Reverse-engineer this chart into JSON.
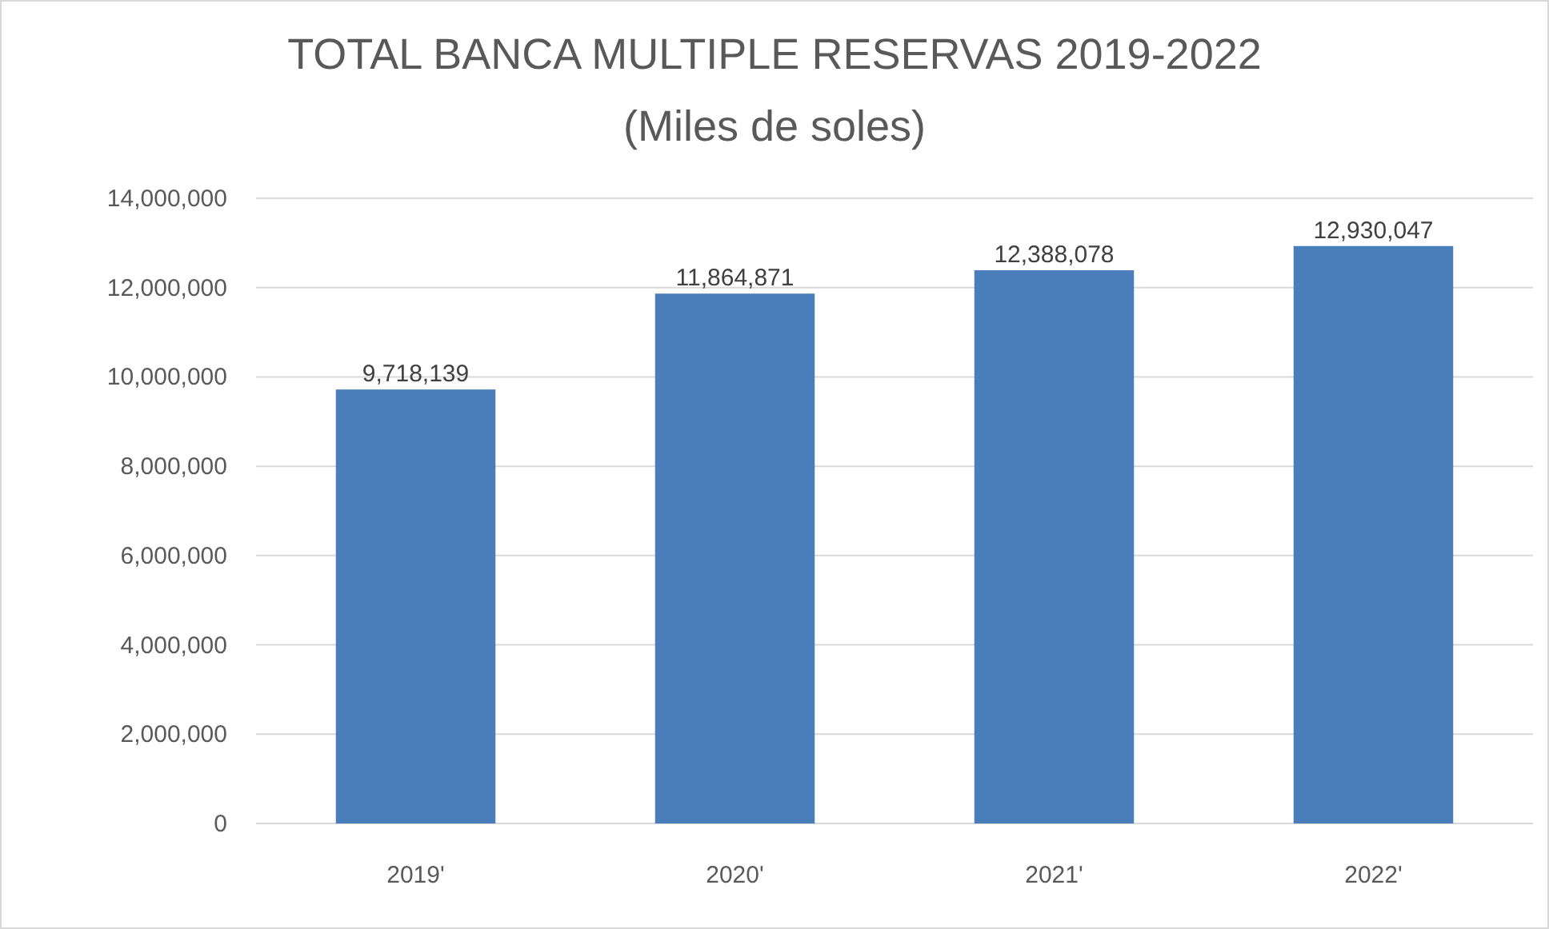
{
  "chart_data": {
    "type": "bar",
    "title": "TOTAL BANCA MULTIPLE RESERVAS 2019-2022",
    "subtitle": "(Miles de soles)",
    "categories": [
      "2019'",
      "2020'",
      "2021'",
      "2022'"
    ],
    "values": [
      9718139,
      11864871,
      12388078,
      12930047
    ],
    "color": "#4a7ebb",
    "value_labels": [
      "9,718,139",
      "11,864,871",
      "12,388,078",
      "12,930,047"
    ],
    "grid": "y",
    "ylim": [
      0,
      14000000
    ],
    "yticks": [
      {
        "value": 0,
        "label": "0"
      },
      {
        "value": 2000000,
        "label": "2,000,000"
      },
      {
        "value": 4000000,
        "label": "4,000,000"
      },
      {
        "value": 6000000,
        "label": "6,000,000"
      },
      {
        "value": 8000000,
        "label": "8,000,000"
      },
      {
        "value": 10000000,
        "label": "10,000,000"
      },
      {
        "value": 12000000,
        "label": "12,000,000"
      },
      {
        "value": 14000000,
        "label": "14,000,000"
      }
    ]
  }
}
